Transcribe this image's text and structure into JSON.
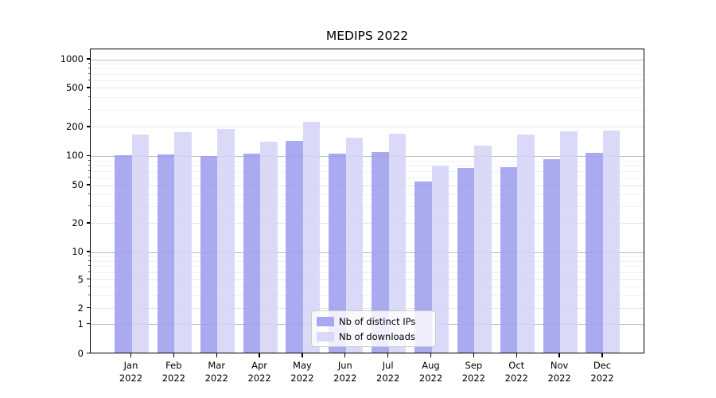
{
  "title": "MEDIPS 2022",
  "chart_data": {
    "type": "bar",
    "title": "MEDIPS 2022",
    "categories": [
      "Jan",
      "Feb",
      "Mar",
      "Apr",
      "May",
      "Jun",
      "Jul",
      "Aug",
      "Sep",
      "Oct",
      "Nov",
      "Dec"
    ],
    "year_label": "2022",
    "series": [
      {
        "name": "Nb of distinct IPs",
        "color": "#9b9bef",
        "values": [
          102,
          105,
          100,
          107,
          146,
          107,
          112,
          55,
          76,
          78,
          94,
          109
        ]
      },
      {
        "name": "Nb of downloads",
        "color": "#d3d3f7",
        "values": [
          170,
          177,
          193,
          142,
          228,
          155,
          173,
          80,
          130,
          168,
          183,
          186
        ]
      }
    ],
    "xlabel": "",
    "ylabel": "",
    "y_axis": {
      "scale": "symlog",
      "ticks": [
        0,
        1,
        2,
        5,
        10,
        20,
        50,
        100,
        200,
        500,
        1000
      ],
      "top_value": 1285
    },
    "grid": "horizontal",
    "legend": {
      "position": "bottom-center",
      "entries": [
        "Nb of distinct IPs",
        "Nb of downloads"
      ]
    }
  }
}
